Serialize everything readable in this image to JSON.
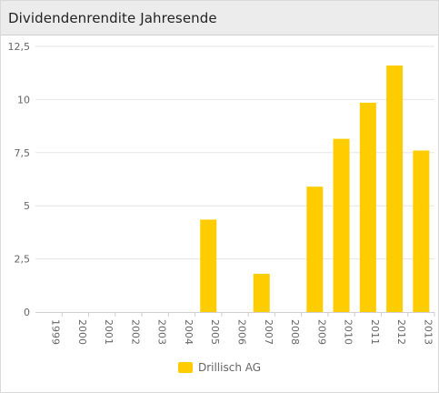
{
  "header": {
    "title": "Dividendenrendite Jahresende"
  },
  "colors": {
    "bar": "#FFCC00",
    "grid": "#e6e6e6",
    "axis": "#cfcfcf",
    "text": "#666666"
  },
  "chart_data": {
    "type": "bar",
    "title": "Dividendenrendite Jahresende",
    "categories": [
      "1999",
      "2000",
      "2001",
      "2002",
      "2003",
      "2004",
      "2005",
      "2006",
      "2007",
      "2008",
      "2009",
      "2010",
      "2011",
      "2012",
      "2013"
    ],
    "series": [
      {
        "name": "Drillisch AG",
        "values": [
          0,
          0,
          0,
          0,
          0,
          0,
          4.35,
          0,
          1.8,
          0,
          5.9,
          8.15,
          9.85,
          11.6,
          7.6
        ]
      }
    ],
    "yticks": [
      "0",
      "2,5",
      "5",
      "7,5",
      "10",
      "12,5"
    ],
    "ylim": [
      0,
      12.5
    ],
    "grid": true,
    "legend": "bottom"
  }
}
